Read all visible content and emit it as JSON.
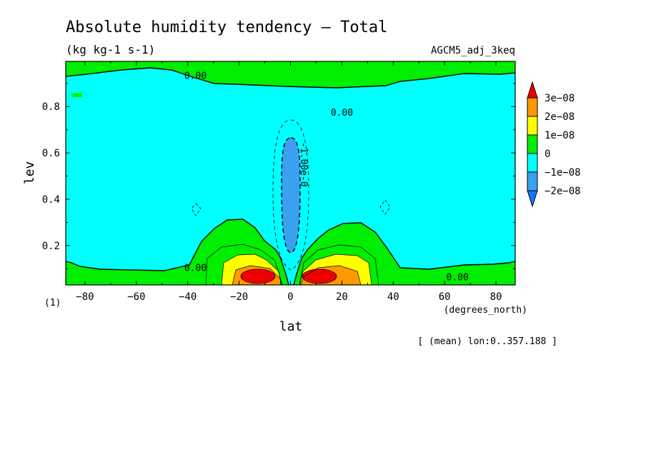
{
  "chart_data": {
    "type": "heatmap",
    "title": "Absolute humidity tendency — Total",
    "units": "(kg kg-1 s-1)",
    "experiment": "AGCM5_adj_3keq",
    "xlabel": "lat",
    "xunits": "(degrees_north)",
    "ylabel": "lev",
    "yunits": "(1)",
    "footer": "[ (mean) lon:0..357.188 ]",
    "xlim": [
      -87.5,
      87.5
    ],
    "ylim": [
      0.995,
      0.03
    ],
    "x_ticks": [
      -80,
      -60,
      -40,
      -20,
      0,
      20,
      40,
      60,
      80
    ],
    "x_tick_labels": [
      "−80",
      "−60",
      "−40",
      "−20",
      "0",
      "20",
      "40",
      "60",
      "80"
    ],
    "y_ticks": [
      0.2,
      0.4,
      0.6,
      0.8
    ],
    "y_tick_labels": [
      "0.2",
      "0.4",
      "0.6",
      "0.8"
    ],
    "contour_labels": [
      {
        "text": "0.00",
        "lat": -37,
        "lev": 0.92
      },
      {
        "text": "0.00",
        "lat": -37,
        "lev": 0.09
      },
      {
        "text": "0.00",
        "lat": 20,
        "lev": 0.76
      },
      {
        "text": "0.00",
        "lat": 65,
        "lev": 0.05
      },
      {
        "text": "-1.00e-0",
        "lat": 4,
        "lev": 0.55
      }
    ],
    "colorbar": {
      "levels": [
        -2e-08,
        -1e-08,
        0,
        1e-08,
        2e-08,
        3e-08
      ],
      "labels": [
        "−2e−08",
        "−1e−08",
        "0",
        "1e−08",
        "2e−08",
        "3e−08"
      ],
      "colors": [
        "#1874ff",
        "#3aa1f0",
        "#00ffff",
        "#00ee00",
        "#ffff00",
        "#ff9900",
        "#ee0000"
      ]
    },
    "grid": false
  }
}
